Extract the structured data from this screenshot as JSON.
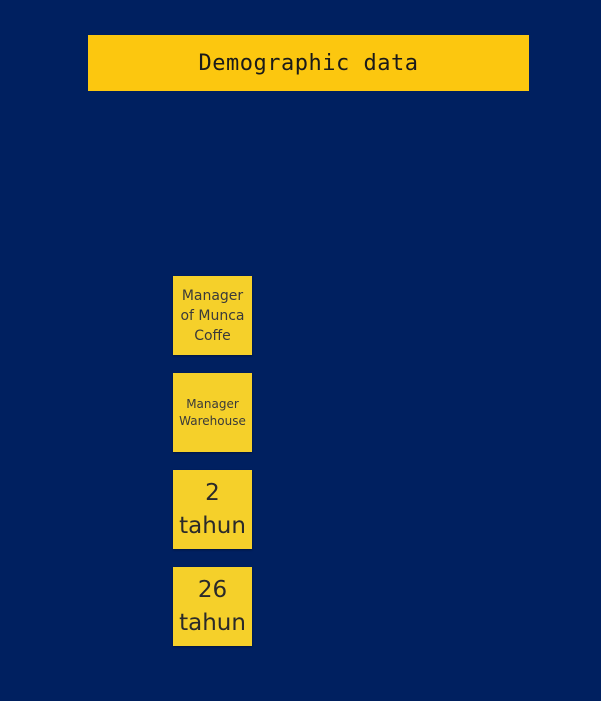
{
  "board": {
    "title": "Demographic data",
    "colors": {
      "background": "#002060",
      "banner": "#FCC70F",
      "sticky": "#F5D02A"
    }
  },
  "stickies": [
    {
      "text": "Manager of Munca Coffe"
    },
    {
      "text": "Manager Warehouse"
    },
    {
      "text": "2 tahun"
    },
    {
      "text": "26 tahun"
    }
  ]
}
